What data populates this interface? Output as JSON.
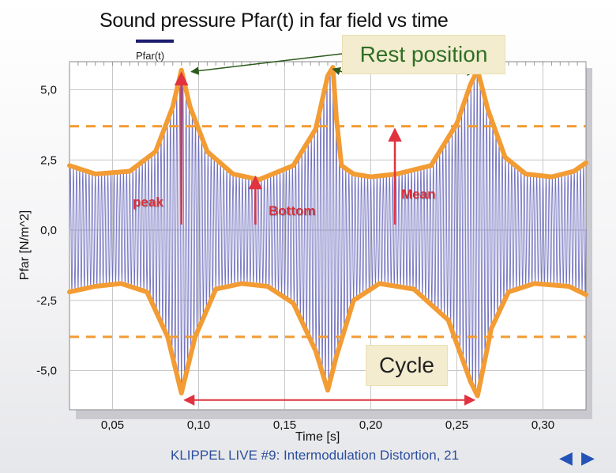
{
  "slide": {
    "footer": "KLIPPEL LIVE #9: Intermodulation Distortion, 21",
    "nav_prev": "◀",
    "nav_next": "▶"
  },
  "chart_data": {
    "type": "line",
    "title": "Sound pressure Pfar(t) in far field vs time",
    "xlabel": "Time  [s]",
    "ylabel": "Pfar  [N/m^2]",
    "xlim": [
      0.025,
      0.325
    ],
    "ylim": [
      -6.0,
      6.0
    ],
    "x_ticks": [
      0.05,
      0.1,
      0.15,
      0.2,
      0.25,
      0.3
    ],
    "x_tick_labels": [
      "0,05",
      "0,10",
      "0,15",
      "0,20",
      "0,25",
      "0,30"
    ],
    "y_ticks": [
      5.0,
      2.5,
      0.0,
      -2.5,
      -5.0
    ],
    "y_tick_labels": [
      "5,0",
      "2,5",
      "0,0",
      "-2,5",
      "-5,0"
    ],
    "grid": true,
    "legend_position": "top-left",
    "series": [
      {
        "name": "Pfar(t)",
        "color": "#1a1a6e",
        "carrier_cycles": 165,
        "envelope_upper": [
          [
            0.025,
            2.3
          ],
          [
            0.04,
            2.0
          ],
          [
            0.06,
            2.1
          ],
          [
            0.075,
            2.8
          ],
          [
            0.085,
            4.4
          ],
          [
            0.09,
            5.7
          ],
          [
            0.095,
            4.4
          ],
          [
            0.105,
            2.8
          ],
          [
            0.12,
            2.0
          ],
          [
            0.135,
            1.8
          ],
          [
            0.155,
            2.3
          ],
          [
            0.168,
            3.6
          ],
          [
            0.175,
            5.5
          ],
          [
            0.178,
            5.8
          ],
          [
            0.18,
            4.0
          ],
          [
            0.183,
            2.3
          ],
          [
            0.19,
            2.0
          ],
          [
            0.2,
            1.9
          ],
          [
            0.215,
            2.0
          ],
          [
            0.235,
            2.3
          ],
          [
            0.25,
            3.8
          ],
          [
            0.258,
            5.2
          ],
          [
            0.262,
            5.7
          ],
          [
            0.268,
            4.3
          ],
          [
            0.278,
            2.6
          ],
          [
            0.29,
            2.0
          ],
          [
            0.305,
            1.9
          ],
          [
            0.318,
            2.1
          ],
          [
            0.325,
            2.4
          ]
        ],
        "envelope_lower": [
          [
            0.025,
            -2.2
          ],
          [
            0.04,
            -2.0
          ],
          [
            0.055,
            -1.9
          ],
          [
            0.07,
            -2.2
          ],
          [
            0.082,
            -3.8
          ],
          [
            0.09,
            -5.8
          ],
          [
            0.098,
            -3.8
          ],
          [
            0.11,
            -2.1
          ],
          [
            0.125,
            -1.9
          ],
          [
            0.14,
            -2.0
          ],
          [
            0.155,
            -2.6
          ],
          [
            0.168,
            -4.3
          ],
          [
            0.175,
            -5.7
          ],
          [
            0.18,
            -4.5
          ],
          [
            0.19,
            -2.5
          ],
          [
            0.205,
            -1.9
          ],
          [
            0.225,
            -2.1
          ],
          [
            0.245,
            -3.2
          ],
          [
            0.258,
            -5.4
          ],
          [
            0.262,
            -5.9
          ],
          [
            0.27,
            -3.5
          ],
          [
            0.28,
            -2.2
          ],
          [
            0.295,
            -1.9
          ],
          [
            0.315,
            -2.0
          ],
          [
            0.325,
            -2.3
          ]
        ]
      }
    ],
    "overlays": {
      "envelope_color": "#f39c33",
      "mean_lines": [
        3.7,
        -3.8
      ],
      "arrow_color": "#e0323f",
      "pointer_color": "#2a5a1a",
      "rest_position_label": "Rest position",
      "cycle_label": "Cycle",
      "peak_label": "peak",
      "bottom_label": "Bottom",
      "mean_label": "Mean",
      "peak_arrow": {
        "x": 0.09,
        "y_from": 0.2,
        "y_to": 5.6
      },
      "bottom_arrow": {
        "x": 0.133,
        "y_from": 0.2,
        "y_to": 1.9
      },
      "mean_arrow": {
        "x": 0.214,
        "y_from": 0.2,
        "y_to": 3.6
      },
      "rest_points": [
        [
          0.093,
          5.7
        ],
        [
          0.178,
          5.8
        ],
        [
          0.262,
          5.7
        ]
      ],
      "cycle_span": [
        0.09,
        0.262
      ],
      "cycle_y": -6.05
    }
  }
}
